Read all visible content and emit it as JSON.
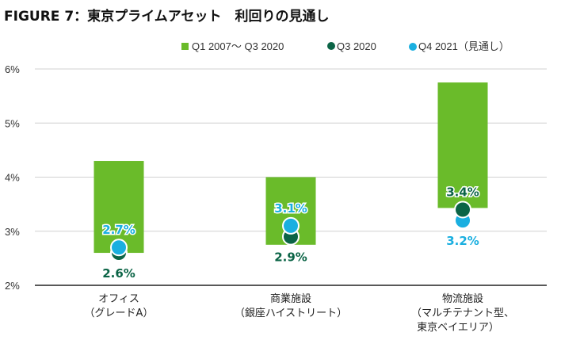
{
  "title": "FIGURE 7：東京プライムアセット　利回りの見通し",
  "colors": {
    "range": "#6ABB2A",
    "q3_2020": "#0B6446",
    "q4_2021": "#1AAFE0",
    "grid": "#d0d0d0",
    "axis": "#222222"
  },
  "chart_data": {
    "type": "bar",
    "subtype": "floating-range-with-markers",
    "title": "FIGURE 7：東京プライムアセット　利回りの見通し",
    "xlabel": "",
    "ylabel": "",
    "ylim": [
      2,
      6
    ],
    "yticks": [
      2,
      3,
      4,
      5,
      6
    ],
    "ytick_labels": [
      "2%",
      "3%",
      "4%",
      "5%",
      "6%"
    ],
    "grid": true,
    "legend_position": "top-right",
    "categories": [
      [
        "オフィス",
        "（グレードA）"
      ],
      [
        "商業施設",
        "（銀座ハイストリート）"
      ],
      [
        "物流施設",
        "（マルチテナント型、",
        "東京ベイエリア）"
      ]
    ],
    "series": [
      {
        "name": "Q1 2007～ Q3 2020",
        "kind": "range",
        "low": [
          2.6,
          2.75,
          3.43
        ],
        "high": [
          4.3,
          4.0,
          5.75
        ]
      },
      {
        "name": "Q3 2020",
        "kind": "marker",
        "values": [
          2.6,
          2.9,
          3.4
        ],
        "labels": [
          "2.6%",
          "2.9%",
          "3.4%"
        ]
      },
      {
        "name": "Q4 2021（見通し）",
        "kind": "marker",
        "values": [
          2.7,
          3.1,
          3.2
        ],
        "labels": [
          "2.7%",
          "3.1%",
          "3.2%"
        ]
      }
    ]
  }
}
